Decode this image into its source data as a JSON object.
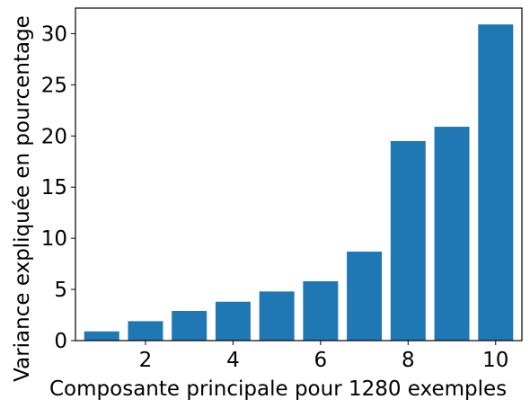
{
  "chart_data": {
    "type": "bar",
    "x": [
      1,
      2,
      3,
      4,
      5,
      6,
      7,
      8,
      9,
      10
    ],
    "values": [
      0.9,
      1.9,
      2.9,
      3.8,
      4.8,
      5.8,
      8.7,
      19.5,
      20.9,
      30.9
    ],
    "xlabel": "Composante principale pour 1280 exemples",
    "ylabel": "Variance expliquée en pourcentage",
    "xticks": [
      "2",
      "4",
      "6",
      "8",
      "10"
    ],
    "yticks": [
      "0",
      "5",
      "10",
      "15",
      "20",
      "25",
      "30"
    ],
    "ylim": [
      0,
      32.5
    ],
    "xlim": [
      0.4,
      10.6
    ],
    "grid": false,
    "bar_color": "#1f77b4"
  }
}
